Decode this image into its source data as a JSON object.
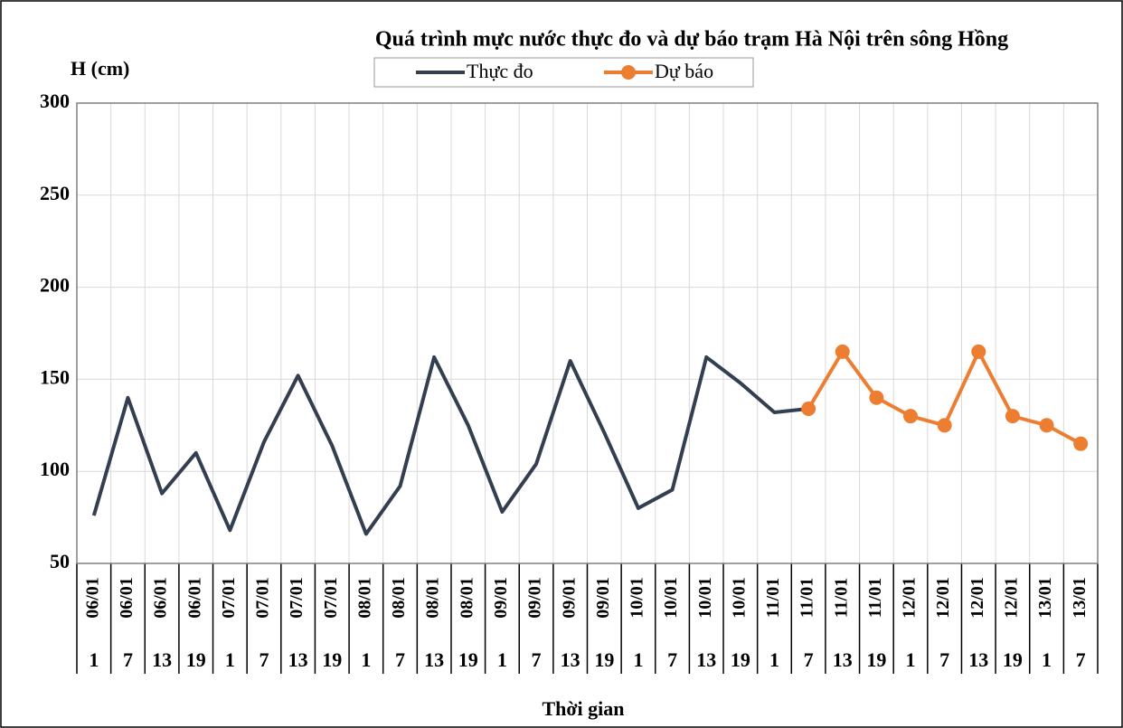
{
  "chart_data": {
    "type": "line",
    "title": "Quá trình mực nước thực đo và dự báo trạm Hà Nội trên sông Hồng",
    "y_label": "H (cm)",
    "x_label": "Thời gian",
    "categories": [
      "06/01",
      "06/01",
      "06/01",
      "06/01",
      "07/01",
      "07/01",
      "07/01",
      "07/01",
      "08/01",
      "08/01",
      "08/01",
      "08/01",
      "09/01",
      "09/01",
      "09/01",
      "09/01",
      "10/01",
      "10/01",
      "10/01",
      "10/01",
      "11/01",
      "11/01",
      "11/01",
      "11/01",
      "12/01",
      "12/01",
      "12/01",
      "12/01",
      "13/01",
      "13/01"
    ],
    "category_hours": [
      "1",
      "7",
      "13",
      "19",
      "1",
      "7",
      "13",
      "19",
      "1",
      "7",
      "13",
      "19",
      "1",
      "7",
      "13",
      "19",
      "1",
      "7",
      "13",
      "19",
      "1",
      "7",
      "13",
      "19",
      "1",
      "7",
      "13",
      "19",
      "1",
      "7"
    ],
    "series": [
      {
        "name": "Thực đo",
        "color": "#333f50",
        "markers": false,
        "values": [
          76,
          140,
          88,
          110,
          68,
          116,
          152,
          114,
          66,
          92,
          162,
          125,
          78,
          104,
          160,
          121,
          80,
          90,
          162,
          148,
          132,
          134,
          null,
          null,
          null,
          null,
          null,
          null,
          null,
          null
        ]
      },
      {
        "name": "Dự báo",
        "color": "#ed7d31",
        "markers": true,
        "values": [
          null,
          null,
          null,
          null,
          null,
          null,
          null,
          null,
          null,
          null,
          null,
          null,
          null,
          null,
          null,
          null,
          null,
          null,
          null,
          null,
          null,
          134,
          165,
          140,
          130,
          125,
          165,
          130,
          125,
          115
        ]
      }
    ],
    "ylim": [
      50,
      300
    ],
    "yticks": [
      50,
      100,
      150,
      200,
      250,
      300
    ],
    "grid": true
  }
}
